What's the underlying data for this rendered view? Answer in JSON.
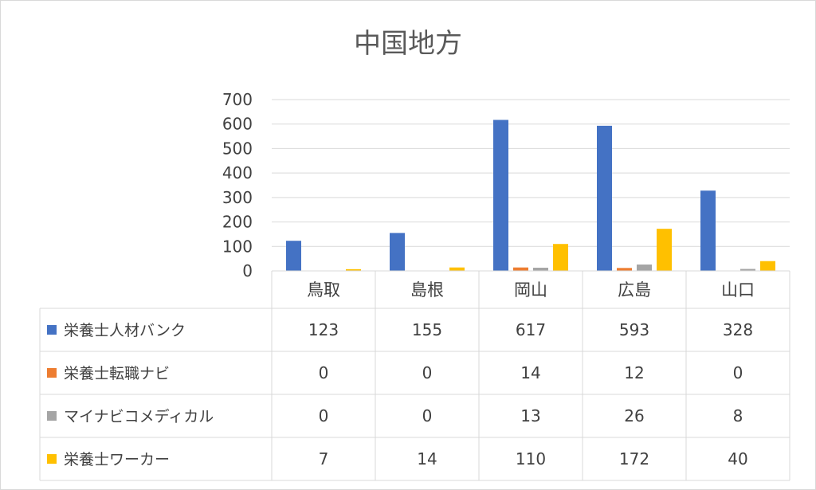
{
  "chart_data": {
    "type": "bar",
    "title": "中国地方",
    "categories": [
      "鳥取",
      "島根",
      "岡山",
      "広島",
      "山口"
    ],
    "series": [
      {
        "name": "栄養士人材バンク",
        "values": [
          123,
          155,
          617,
          593,
          328
        ],
        "color": "#4472C4"
      },
      {
        "name": "栄養士転職ナビ",
        "values": [
          0,
          0,
          14,
          12,
          0
        ],
        "color": "#ED7D31"
      },
      {
        "name": "マイナビコメディカル",
        "values": [
          0,
          0,
          13,
          26,
          8
        ],
        "color": "#A5A5A5"
      },
      {
        "name": "栄養士ワーカー",
        "values": [
          7,
          14,
          110,
          172,
          40
        ],
        "color": "#FFC000"
      }
    ],
    "ylim": [
      0,
      700
    ],
    "yticks": [
      0,
      100,
      200,
      300,
      400,
      500,
      600,
      700
    ],
    "grid": true,
    "legend": "data-table",
    "xlabel": "",
    "ylabel": ""
  }
}
